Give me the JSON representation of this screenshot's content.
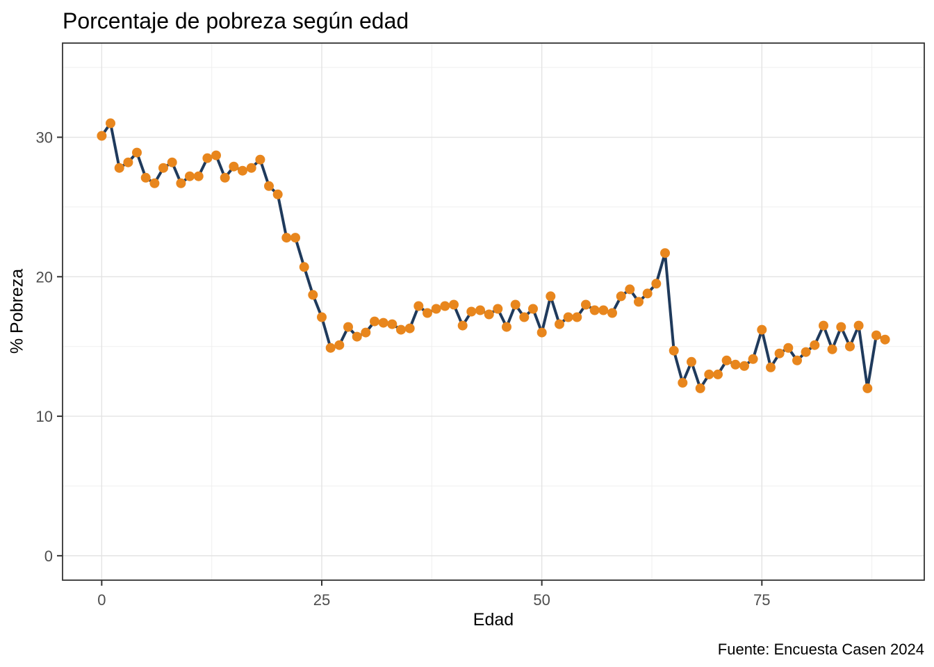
{
  "chart_data": {
    "type": "line",
    "title": "Porcentaje de pobreza según edad",
    "xlabel": "Edad",
    "ylabel": "% Pobreza",
    "caption": "Fuente: Encuesta Casen 2024",
    "legend": "none",
    "grid": true,
    "x_ticks": [
      0,
      25,
      50,
      75
    ],
    "x_minor_ticks": [
      12.5,
      37.5,
      62.5,
      87.5
    ],
    "y_ticks": [
      0,
      10,
      20,
      30
    ],
    "y_minor_ticks": [
      5,
      15,
      25,
      35
    ],
    "x_domain": [
      -4.45,
      93.45
    ],
    "y_domain": [
      -1.75,
      36.75
    ],
    "x": [
      0,
      1,
      2,
      3,
      4,
      5,
      6,
      7,
      8,
      9,
      10,
      11,
      12,
      13,
      14,
      15,
      16,
      17,
      18,
      19,
      20,
      21,
      22,
      23,
      24,
      25,
      26,
      27,
      28,
      29,
      30,
      31,
      32,
      33,
      34,
      35,
      36,
      37,
      38,
      39,
      40,
      41,
      42,
      43,
      44,
      45,
      46,
      47,
      48,
      49,
      50,
      51,
      52,
      53,
      54,
      55,
      56,
      57,
      58,
      59,
      60,
      61,
      62,
      63,
      64,
      65,
      66,
      67,
      68,
      69,
      70,
      71,
      72,
      73,
      74,
      75,
      76,
      77,
      78,
      79,
      80,
      81,
      82,
      83,
      84,
      85,
      86,
      87,
      88,
      89
    ],
    "y": [
      30.1,
      31.0,
      27.8,
      28.2,
      28.9,
      27.1,
      26.7,
      27.8,
      28.2,
      26.7,
      27.2,
      27.2,
      28.5,
      28.7,
      27.1,
      27.9,
      27.6,
      27.8,
      28.4,
      26.5,
      25.9,
      22.8,
      22.8,
      20.7,
      18.7,
      17.1,
      14.9,
      15.1,
      16.4,
      15.7,
      16.0,
      16.8,
      16.7,
      16.6,
      16.2,
      16.3,
      17.9,
      17.4,
      17.7,
      17.9,
      18.0,
      16.5,
      17.5,
      17.6,
      17.3,
      17.7,
      16.4,
      18.0,
      17.1,
      17.7,
      16.0,
      18.6,
      16.6,
      17.1,
      17.1,
      18.0,
      17.6,
      17.6,
      17.4,
      18.6,
      19.1,
      18.2,
      18.8,
      19.5,
      21.7,
      14.7,
      12.4,
      13.9,
      12.0,
      13.0,
      13.0,
      14.0,
      13.7,
      13.6,
      14.1,
      16.2,
      13.5,
      14.5,
      14.9,
      14.0,
      14.6,
      15.1,
      16.5,
      14.8,
      16.4,
      15.0,
      16.5,
      12.0,
      15.8,
      15.5
    ],
    "colors": {
      "line": "#1F3A5C",
      "point": "#E8861D",
      "grid_major": "#E3E3E3",
      "grid_minor": "#EFEFEF",
      "panel_border": "#333333",
      "tick": "#333333",
      "tick_label": "#4D4D4D",
      "text": "#000000",
      "background": "#FFFFFF"
    }
  }
}
